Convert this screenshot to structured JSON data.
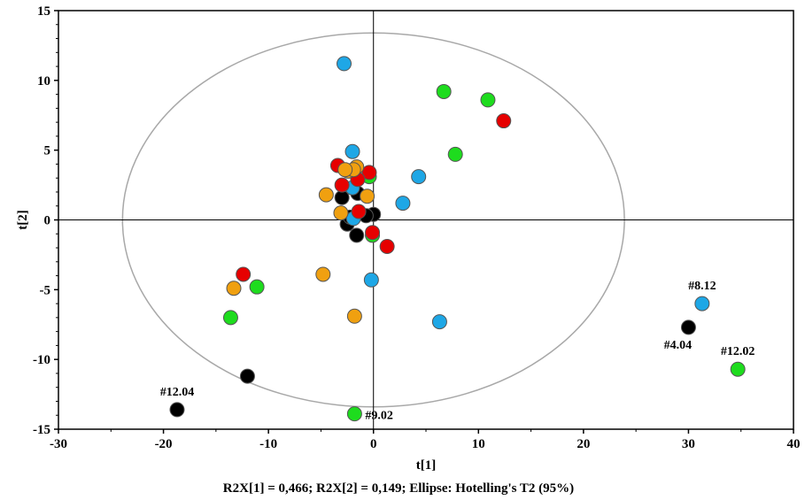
{
  "chart_data": {
    "type": "scatter",
    "xlabel": "t[1]",
    "ylabel": "t[2]",
    "xlim": [
      -30,
      40
    ],
    "ylim": [
      -15,
      15
    ],
    "xticks": [
      -30,
      -20,
      -10,
      0,
      10,
      20,
      30,
      40
    ],
    "yticks": [
      -15,
      -10,
      -5,
      0,
      5,
      10,
      15
    ],
    "footer": "R2X[1] = 0,466; R2X[2] = 0,149; Ellipse: Hotelling's T2 (95%)",
    "ellipse": {
      "cx": 0,
      "cy": 0,
      "rx": 23.9,
      "ry": 13.4
    },
    "zero_lines": true,
    "colors": {
      "black": "#000000",
      "blue": "#1ea7e6",
      "green": "#1edc1e",
      "red": "#e60000",
      "orange": "#f0a010"
    },
    "series": [
      {
        "color_key": "black",
        "points": [
          [
            -18.7,
            -13.6
          ],
          [
            -12.0,
            -11.2
          ],
          [
            30.0,
            -7.7
          ],
          [
            0.0,
            0.4
          ],
          [
            -1.6,
            -1.1
          ],
          [
            -2.5,
            -0.3
          ],
          [
            -3.0,
            1.6
          ],
          [
            -1.5,
            1.9
          ],
          [
            -2.2,
            0.2
          ],
          [
            -0.7,
            0.3
          ]
        ]
      },
      {
        "color_key": "blue",
        "points": [
          [
            31.3,
            -6.0
          ],
          [
            -2.8,
            11.2
          ],
          [
            -2.0,
            4.9
          ],
          [
            4.3,
            3.1
          ],
          [
            2.8,
            1.2
          ],
          [
            -2.0,
            2.3
          ],
          [
            -1.9,
            0.1
          ],
          [
            -0.2,
            -4.3
          ],
          [
            6.3,
            -7.3
          ]
        ]
      },
      {
        "color_key": "green",
        "points": [
          [
            34.7,
            -10.7
          ],
          [
            6.7,
            9.2
          ],
          [
            10.9,
            8.6
          ],
          [
            7.8,
            4.7
          ],
          [
            -11.1,
            -4.8
          ],
          [
            -13.6,
            -7.0
          ],
          [
            -1.8,
            -13.9
          ],
          [
            -0.1,
            -1.1
          ],
          [
            -0.4,
            3.1
          ]
        ]
      },
      {
        "color_key": "red",
        "points": [
          [
            12.4,
            7.1
          ],
          [
            -12.4,
            -3.9
          ],
          [
            1.3,
            -1.9
          ],
          [
            -0.1,
            -0.9
          ],
          [
            -3.4,
            3.9
          ],
          [
            -0.4,
            3.4
          ],
          [
            -1.5,
            2.9
          ],
          [
            -3.0,
            2.5
          ],
          [
            -1.4,
            0.6
          ]
        ]
      },
      {
        "color_key": "orange",
        "points": [
          [
            -13.3,
            -4.9
          ],
          [
            -4.8,
            -3.9
          ],
          [
            -1.8,
            -6.9
          ],
          [
            -4.5,
            1.8
          ],
          [
            -3.1,
            0.5
          ],
          [
            -0.6,
            1.7
          ],
          [
            -2.4,
            3.5
          ],
          [
            -1.6,
            3.8
          ],
          [
            -1.9,
            3.6
          ],
          [
            -2.7,
            3.6
          ]
        ]
      }
    ],
    "annotations": [
      {
        "text": "#12.04",
        "x": -18.7,
        "y": -13.6,
        "pos": "above"
      },
      {
        "text": "#9.02",
        "x": -1.8,
        "y": -13.9,
        "pos": "right"
      },
      {
        "text": "#8.12",
        "x": 31.3,
        "y": -6.0,
        "pos": "above"
      },
      {
        "text": "#4.04",
        "x": 30.0,
        "y": -7.7,
        "pos": "below-left"
      },
      {
        "text": "#12.02",
        "x": 34.7,
        "y": -10.7,
        "pos": "above"
      }
    ]
  }
}
